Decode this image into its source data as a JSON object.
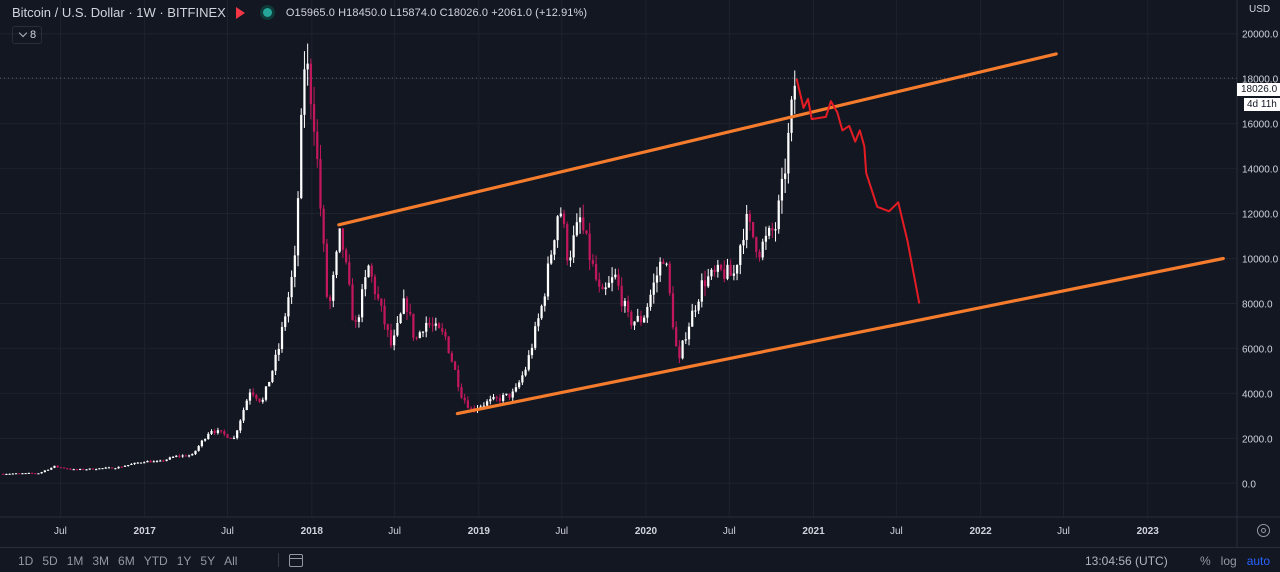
{
  "header": {
    "title": "Bitcoin / U.S. Dollar · 1W · BITFINEX",
    "ohlc": "O15965.0 H18450.0 L15874.0 C18026.0 +2061.0 (+12.91%)",
    "indicator_count": "8"
  },
  "price_scale": {
    "currency": "USD",
    "last_price_label": "18026.0",
    "countdown_label": "4d 11h"
  },
  "bottom_bar": {
    "ranges": [
      "1D",
      "5D",
      "1M",
      "3M",
      "6M",
      "YTD",
      "1Y",
      "5Y",
      "All"
    ],
    "clock": "13:04:56 (UTC)",
    "percent_label": "%",
    "log_label": "log",
    "auto_label": "auto"
  },
  "colors": {
    "background": "#131722",
    "up": "#ffffff",
    "down": "#c2185b",
    "channel": "#f57c2c",
    "projection": "#e61c24",
    "grid": "#2a2e39",
    "text": "#d1d4dc"
  },
  "chart_data": {
    "type": "candlestick",
    "title": "",
    "xlabel": "",
    "ylabel": "",
    "ylim": [
      -1500,
      21500
    ],
    "y_ticks": [
      0,
      2000,
      4000,
      6000,
      8000,
      10000,
      12000,
      14000,
      16000,
      18000,
      20000
    ],
    "y_tick_labels": [
      "0.0",
      "2000.0",
      "4000.0",
      "6000.0",
      "8000.0",
      "10000.0",
      "12000.0",
      "14000.0",
      "16000.0",
      "18000.0",
      "20000.0"
    ],
    "x_ticks": [
      {
        "date": "2016-07-01",
        "label": "Jul"
      },
      {
        "date": "2017-01-01",
        "label": "2017"
      },
      {
        "date": "2017-07-01",
        "label": "Jul"
      },
      {
        "date": "2018-01-01",
        "label": "2018"
      },
      {
        "date": "2018-07-01",
        "label": "Jul"
      },
      {
        "date": "2019-01-01",
        "label": "2019"
      },
      {
        "date": "2019-07-01",
        "label": "Jul"
      },
      {
        "date": "2020-01-01",
        "label": "2020"
      },
      {
        "date": "2020-07-01",
        "label": "Jul"
      },
      {
        "date": "2021-01-01",
        "label": "2021"
      },
      {
        "date": "2021-07-01",
        "label": "Jul"
      },
      {
        "date": "2022-01-01",
        "label": "2022"
      },
      {
        "date": "2022-07-01",
        "label": "Jul"
      },
      {
        "date": "2023-01-01",
        "label": "2023"
      }
    ],
    "xlim": [
      "2016-02-20",
      "2023-07-15"
    ],
    "last_price": 18026.0,
    "anchors": [
      [
        "2016-02-20",
        420
      ],
      [
        "2016-05-15",
        450
      ],
      [
        "2016-06-18",
        750
      ],
      [
        "2016-08-01",
        600
      ],
      [
        "2016-11-01",
        700
      ],
      [
        "2017-01-01",
        980
      ],
      [
        "2017-02-01",
        950
      ],
      [
        "2017-03-10",
        1200
      ],
      [
        "2017-04-15",
        1250
      ],
      [
        "2017-05-25",
        2400
      ],
      [
        "2017-07-15",
        2000
      ],
      [
        "2017-08-20",
        4200
      ],
      [
        "2017-09-15",
        3600
      ],
      [
        "2017-10-20",
        5900
      ],
      [
        "2017-11-25",
        9800
      ],
      [
        "2017-12-17",
        19100
      ],
      [
        "2018-01-05",
        16500
      ],
      [
        "2018-02-06",
        7500
      ],
      [
        "2018-03-05",
        11200
      ],
      [
        "2018-04-05",
        6800
      ],
      [
        "2018-05-05",
        9600
      ],
      [
        "2018-06-25",
        6000
      ],
      [
        "2018-07-25",
        8200
      ],
      [
        "2018-08-15",
        6300
      ],
      [
        "2018-09-05",
        7200
      ],
      [
        "2018-10-20",
        6500
      ],
      [
        "2018-11-25",
        3900
      ],
      [
        "2018-12-15",
        3300
      ],
      [
        "2019-01-20",
        3600
      ],
      [
        "2019-02-20",
        3800
      ],
      [
        "2019-03-20",
        4000
      ],
      [
        "2019-04-15",
        5200
      ],
      [
        "2019-05-20",
        8000
      ],
      [
        "2019-06-26",
        12500
      ],
      [
        "2019-07-15",
        10000
      ],
      [
        "2019-08-10",
        11700
      ],
      [
        "2019-09-25",
        8200
      ],
      [
        "2019-10-25",
        9200
      ],
      [
        "2019-11-25",
        7200
      ],
      [
        "2019-12-25",
        7300
      ],
      [
        "2020-02-10",
        10300
      ],
      [
        "2020-03-12",
        5200
      ],
      [
        "2020-03-25",
        6500
      ],
      [
        "2020-05-05",
        9000
      ],
      [
        "2020-06-15",
        9400
      ],
      [
        "2020-07-10",
        9200
      ],
      [
        "2020-08-05",
        11700
      ],
      [
        "2020-09-05",
        10400
      ],
      [
        "2020-10-10",
        11400
      ],
      [
        "2020-10-25",
        13100
      ],
      [
        "2020-11-10",
        15800
      ],
      [
        "2020-11-23",
        18026
      ]
    ],
    "annotations": [
      {
        "type": "channel_upper",
        "points": [
          {
            "date": "2018-03-01",
            "value": 11500
          },
          {
            "date": "2022-06-15",
            "value": 19100
          }
        ]
      },
      {
        "type": "channel_lower",
        "points": [
          {
            "date": "2018-11-15",
            "value": 3100
          },
          {
            "date": "2023-06-15",
            "value": 10000
          }
        ]
      },
      {
        "type": "projection",
        "points": [
          {
            "date": "2020-11-25",
            "value": 18000
          },
          {
            "date": "2020-12-10",
            "value": 16700
          },
          {
            "date": "2020-12-20",
            "value": 17100
          },
          {
            "date": "2020-12-28",
            "value": 16200
          },
          {
            "date": "2021-01-28",
            "value": 16300
          },
          {
            "date": "2021-02-08",
            "value": 17000
          },
          {
            "date": "2021-02-22",
            "value": 16500
          },
          {
            "date": "2021-03-05",
            "value": 15700
          },
          {
            "date": "2021-03-20",
            "value": 15900
          },
          {
            "date": "2021-04-02",
            "value": 15200
          },
          {
            "date": "2021-04-12",
            "value": 15700
          },
          {
            "date": "2021-04-22",
            "value": 15000
          },
          {
            "date": "2021-04-26",
            "value": 13800
          },
          {
            "date": "2021-05-20",
            "value": 12300
          },
          {
            "date": "2021-06-15",
            "value": 12100
          },
          {
            "date": "2021-07-05",
            "value": 12500
          },
          {
            "date": "2021-07-25",
            "value": 10800
          },
          {
            "date": "2021-08-20",
            "value": 8000
          }
        ]
      }
    ]
  }
}
